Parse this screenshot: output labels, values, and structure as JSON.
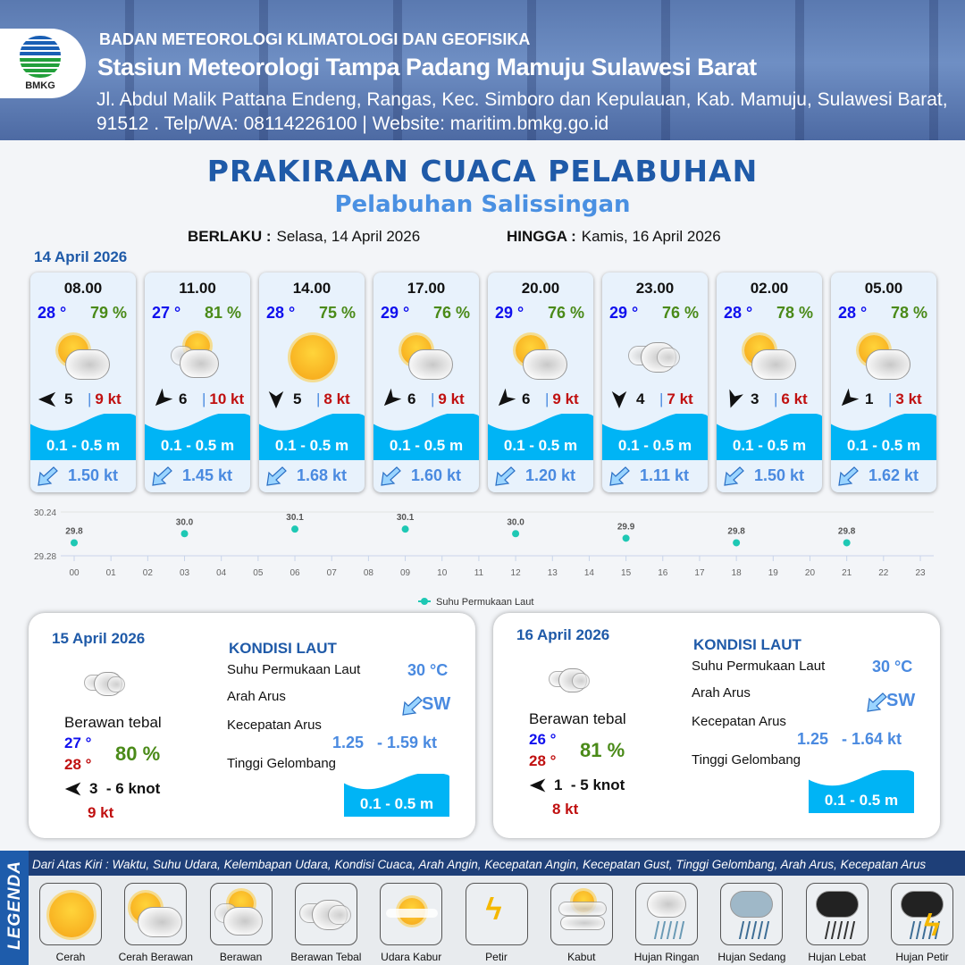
{
  "header": {
    "logo_text": "BMKG",
    "agency": "BADAN METEOROLOGI KLIMATOLOGI DAN GEOFISIKA",
    "station": "Stasiun Meteorologi Tampa Padang Mamuju Sulawesi Barat",
    "address": "Jl. Abdul Malik Pattana Endeng, Rangas, Kec. Simboro dan Kepulauan, Kab. Mamuju, Sulawesi Barat, 91512 . Telp/WA: 08114226100 | Website: maritim.bmkg.go.id"
  },
  "title": "PRAKIRAAN CUACA PELABUHAN",
  "subtitle": "Pelabuhan Salissingan",
  "validity": {
    "from_label": "BERLAKU :",
    "from": "Selasa, 14 April 2026",
    "to_label": "HINGGA :",
    "to": "Kamis, 16 April 2026"
  },
  "day1": {
    "date": "14 April 2026",
    "forecasts": [
      {
        "time": "08.00",
        "temp": "28 °",
        "humidity": "79 %",
        "weather": "cerah-berawan",
        "wind_dir_deg": 270,
        "wind": "5",
        "gust": "9 kt",
        "wave": "0.1 - 0.5 m",
        "current": "1.50 kt"
      },
      {
        "time": "11.00",
        "temp": "27 °",
        "humidity": "81 %",
        "weather": "berawan",
        "wind_dir_deg": 225,
        "wind": "6",
        "gust": "10 kt",
        "wave": "0.1 - 0.5 m",
        "current": "1.45 kt"
      },
      {
        "time": "14.00",
        "temp": "28 °",
        "humidity": "75 %",
        "weather": "cerah",
        "wind_dir_deg": 180,
        "wind": "5",
        "gust": "8 kt",
        "wave": "0.1 - 0.5 m",
        "current": "1.68 kt"
      },
      {
        "time": "17.00",
        "temp": "29 °",
        "humidity": "76 %",
        "weather": "cerah-berawan",
        "wind_dir_deg": 225,
        "wind": "6",
        "gust": "9 kt",
        "wave": "0.1 - 0.5 m",
        "current": "1.60 kt"
      },
      {
        "time": "20.00",
        "temp": "29 °",
        "humidity": "76 %",
        "weather": "cerah-berawan",
        "wind_dir_deg": 225,
        "wind": "6",
        "gust": "9 kt",
        "wave": "0.1 - 0.5 m",
        "current": "1.20 kt"
      },
      {
        "time": "23.00",
        "temp": "29 °",
        "humidity": "76 %",
        "weather": "berawan-tebal",
        "wind_dir_deg": 180,
        "wind": "4",
        "gust": "7 kt",
        "wave": "0.1 - 0.5 m",
        "current": "1.11 kt"
      },
      {
        "time": "02.00",
        "temp": "28 °",
        "humidity": "78 %",
        "weather": "cerah-berawan",
        "wind_dir_deg": 200,
        "wind": "3",
        "gust": "6 kt",
        "wave": "0.1 - 0.5 m",
        "current": "1.50 kt"
      },
      {
        "time": "05.00",
        "temp": "28 °",
        "humidity": "78 %",
        "weather": "cerah-berawan",
        "wind_dir_deg": 225,
        "wind": "1",
        "gust": "3 kt",
        "wave": "0.1 - 0.5 m",
        "current": "1.62 kt"
      }
    ]
  },
  "chart_data": {
    "type": "scatter",
    "x": [
      "00",
      "03",
      "06",
      "09",
      "12",
      "15",
      "18",
      "21"
    ],
    "series": [
      {
        "name": "Suhu Permukaan Laut",
        "values": [
          29.8,
          30.0,
          30.1,
          30.1,
          30.0,
          29.9,
          29.8,
          29.8
        ],
        "color": "#1ec8b4"
      }
    ],
    "x_ticks": [
      "00",
      "01",
      "02",
      "03",
      "04",
      "05",
      "06",
      "07",
      "08",
      "09",
      "10",
      "11",
      "12",
      "13",
      "14",
      "15",
      "16",
      "17",
      "18",
      "19",
      "20",
      "21",
      "22",
      "23"
    ],
    "y_ticks": [
      "30.24",
      "29.28"
    ],
    "ylim": [
      29.28,
      30.24
    ],
    "legend": "bottom"
  },
  "days": [
    {
      "date": "15 April 2026",
      "weather": "berawan-tebal",
      "condition": "Berawan tebal",
      "tmin": "27 °",
      "tmax": "28 °",
      "humidity": "80 %",
      "wind_dir_deg": 270,
      "wind": "3  - 6 knot",
      "gust": "9 kt",
      "sea": {
        "title": "KONDISI LAUT",
        "sst_label": "Suhu Permukaan Laut",
        "sst": "30 °C",
        "dir_label": "Arah Arus",
        "dir": "SW",
        "speed_label": "Kecepatan Arus",
        "speed_min": "1.25",
        "speed_max": "- 1.59 kt",
        "wave_label": "Tinggi Gelombang",
        "wave": "0.1 - 0.5 m"
      }
    },
    {
      "date": "16 April 2026",
      "weather": "berawan-tebal",
      "condition": "Berawan tebal",
      "tmin": "26 °",
      "tmax": "28 °",
      "humidity": "81 %",
      "wind_dir_deg": 270,
      "wind": "1  - 5 knot",
      "gust": "8 kt",
      "sea": {
        "title": "KONDISI LAUT",
        "sst_label": "Suhu Permukaan Laut",
        "sst": "30 °C",
        "dir_label": "Arah Arus",
        "dir": "SW",
        "speed_label": "Kecepatan Arus",
        "speed_min": "1.25",
        "speed_max": "- 1.64 kt",
        "wave_label": "Tinggi Gelombang",
        "wave": "0.1 - 0.5 m"
      }
    }
  ],
  "legend": {
    "title": "LEGENDA",
    "description": "Dari Atas Kiri : Waktu, Suhu Udara, Kelembapan Udara, Kondisi Cuaca, Arah Angin, Kecepatan Angin, Kecepatan Gust, Tinggi Gelombang, Arah Arus, Kecepatan Arus",
    "items": [
      {
        "label": "Cerah",
        "icon": "cerah"
      },
      {
        "label": "Cerah Berawan",
        "icon": "cerah-berawan"
      },
      {
        "label": "Berawan",
        "icon": "berawan"
      },
      {
        "label": "Berawan Tebal",
        "icon": "berawan-tebal"
      },
      {
        "label": "Udara Kabur",
        "icon": "udara-kabur"
      },
      {
        "label": "Petir",
        "icon": "petir"
      },
      {
        "label": "Kabut",
        "icon": "kabut"
      },
      {
        "label": "Hujan Ringan",
        "icon": "hujan-ringan"
      },
      {
        "label": "Hujan Sedang",
        "icon": "hujan-sedang"
      },
      {
        "label": "Hujan Lebat",
        "icon": "hujan-lebat"
      },
      {
        "label": "Hujan Petir",
        "icon": "hujan-petir"
      }
    ]
  },
  "colors": {
    "brand": "#1f5aa8",
    "wave": "#00b4f5",
    "temp": "#1010ee",
    "humidity": "#4a8a18",
    "gust": "#c01010",
    "current": "#4a8ae0"
  }
}
